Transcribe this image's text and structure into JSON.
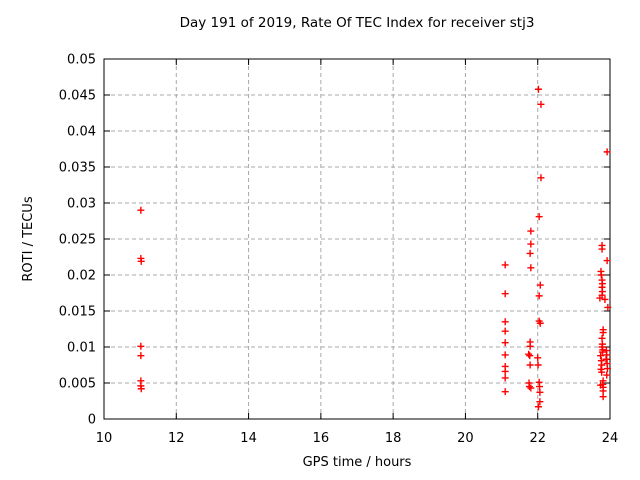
{
  "window": {
    "background": "#ffffff"
  },
  "colors": {
    "marker": "#ff0000",
    "grid": "#a8a8a8",
    "axis": "#000000",
    "text": "#000000",
    "background": "#ffffff"
  },
  "chart_data": {
    "type": "scatter",
    "title": "Day 191 of 2019, Rate Of TEC Index for receiver stj3",
    "xlabel": "GPS time / hours",
    "ylabel": "ROTI / TECUs",
    "xlim": [
      10,
      24
    ],
    "ylim": [
      0,
      0.05
    ],
    "x_ticks": [
      10,
      12,
      14,
      16,
      18,
      20,
      22,
      24
    ],
    "x_tick_labels": [
      "10",
      "12",
      "14",
      "16",
      "18",
      "20",
      "22",
      "24"
    ],
    "y_ticks": [
      0,
      0.005,
      0.01,
      0.015,
      0.02,
      0.025,
      0.03,
      0.035,
      0.04,
      0.045,
      0.05
    ],
    "y_tick_labels": [
      "0",
      "0.005",
      "0.01",
      "0.015",
      "0.02",
      "0.025",
      "0.03",
      "0.035",
      "0.04",
      "0.045",
      "0.05"
    ],
    "grid": true,
    "legend": "none",
    "marker": "plus",
    "series": [
      {
        "name": "ROTI",
        "color": "#ff0000",
        "points": [
          [
            11.02,
            0.029
          ],
          [
            11.02,
            0.0223
          ],
          [
            11.03,
            0.0219
          ],
          [
            11.02,
            0.0101
          ],
          [
            11.02,
            0.0088
          ],
          [
            11.02,
            0.0053
          ],
          [
            11.02,
            0.0046
          ],
          [
            11.03,
            0.0042
          ],
          [
            21.1,
            0.0214
          ],
          [
            21.1,
            0.0174
          ],
          [
            21.1,
            0.0135
          ],
          [
            21.1,
            0.0122
          ],
          [
            21.1,
            0.0106
          ],
          [
            21.1,
            0.0089
          ],
          [
            21.1,
            0.0073
          ],
          [
            21.1,
            0.0066
          ],
          [
            21.1,
            0.0057
          ],
          [
            21.1,
            0.0038
          ],
          [
            22.02,
            0.0458
          ],
          [
            22.09,
            0.0437
          ],
          [
            22.09,
            0.0335
          ],
          [
            22.04,
            0.0281
          ],
          [
            21.81,
            0.0261
          ],
          [
            21.81,
            0.0243
          ],
          [
            21.79,
            0.023
          ],
          [
            21.81,
            0.021
          ],
          [
            22.07,
            0.0186
          ],
          [
            22.04,
            0.0171
          ],
          [
            22.04,
            0.0136
          ],
          [
            22.07,
            0.0133
          ],
          [
            21.79,
            0.0107
          ],
          [
            21.79,
            0.0101
          ],
          [
            21.75,
            0.009
          ],
          [
            21.78,
            0.0088
          ],
          [
            22.0,
            0.0085
          ],
          [
            21.79,
            0.0075
          ],
          [
            22.01,
            0.0075
          ],
          [
            21.76,
            0.005
          ],
          [
            21.77,
            0.0045
          ],
          [
            21.81,
            0.0043
          ],
          [
            22.04,
            0.0051
          ],
          [
            22.05,
            0.0045
          ],
          [
            22.06,
            0.0037
          ],
          [
            22.06,
            0.0024
          ],
          [
            22.02,
            0.0017
          ],
          [
            23.92,
            0.0371
          ],
          [
            23.78,
            0.0241
          ],
          [
            23.78,
            0.0236
          ],
          [
            23.92,
            0.022
          ],
          [
            23.75,
            0.0205
          ],
          [
            23.76,
            0.02
          ],
          [
            23.78,
            0.0193
          ],
          [
            23.79,
            0.0188
          ],
          [
            23.78,
            0.0183
          ],
          [
            23.79,
            0.0177
          ],
          [
            23.78,
            0.0172
          ],
          [
            23.72,
            0.0168
          ],
          [
            23.86,
            0.0166
          ],
          [
            23.94,
            0.0155
          ],
          [
            23.81,
            0.0124
          ],
          [
            23.81,
            0.012
          ],
          [
            23.78,
            0.0112
          ],
          [
            23.79,
            0.0104
          ],
          [
            23.78,
            0.01
          ],
          [
            23.8,
            0.0096
          ],
          [
            23.79,
            0.0093
          ],
          [
            23.9,
            0.0095
          ],
          [
            23.91,
            0.0089
          ],
          [
            23.89,
            0.0083
          ],
          [
            23.74,
            0.0088
          ],
          [
            23.76,
            0.0081
          ],
          [
            23.77,
            0.0075
          ],
          [
            23.75,
            0.0069
          ],
          [
            23.77,
            0.0065
          ],
          [
            23.92,
            0.0077
          ],
          [
            23.93,
            0.007
          ],
          [
            23.91,
            0.0061
          ],
          [
            23.81,
            0.0053
          ],
          [
            23.8,
            0.0048
          ],
          [
            23.81,
            0.0044
          ],
          [
            23.74,
            0.0047
          ],
          [
            23.81,
            0.0039
          ],
          [
            23.81,
            0.0031
          ]
        ]
      }
    ]
  }
}
